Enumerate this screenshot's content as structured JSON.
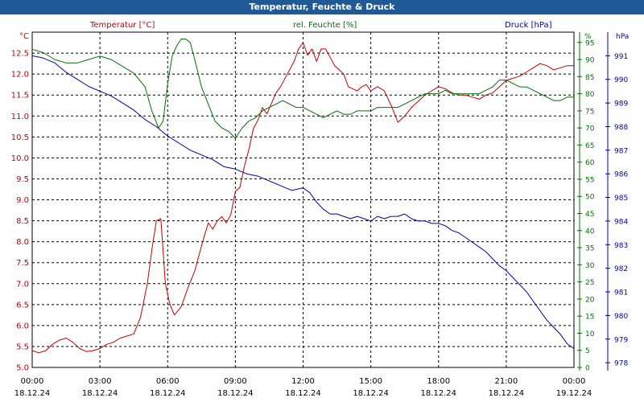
{
  "chart_data": {
    "type": "line",
    "title": "Temperatur, Feuchte & Druck",
    "x_ticks": [
      {
        "time": "00:00",
        "date": "18.12.24"
      },
      {
        "time": "03:00",
        "date": "18.12.24"
      },
      {
        "time": "06:00",
        "date": "18.12.24"
      },
      {
        "time": "09:00",
        "date": "18.12.24"
      },
      {
        "time": "12:00",
        "date": "18.12.24"
      },
      {
        "time": "15:00",
        "date": "18.12.24"
      },
      {
        "time": "18:00",
        "date": "18.12.24"
      },
      {
        "time": "21:00",
        "date": "18.12.24"
      },
      {
        "time": "00:00",
        "date": "19.12.24"
      }
    ],
    "xlim_hours": [
      0,
      24
    ],
    "axes": {
      "temperature": {
        "label": "Temperatur [°C]",
        "unit": "°C",
        "ylim": [
          5.0,
          13.0
        ],
        "ticks": [
          "5.0",
          "5.5",
          "6.0",
          "6.5",
          "7.0",
          "7.5",
          "8.0",
          "8.5",
          "9.0",
          "9.5",
          "10.0",
          "10.5",
          "11.0",
          "11.5",
          "12.0",
          "12.5"
        ],
        "color": "#c00000"
      },
      "humidity": {
        "label": "rel. Feuchte [%]",
        "unit": "%",
        "ylim": [
          0,
          98
        ],
        "ticks": [
          "0",
          "5",
          "10",
          "15",
          "20",
          "25",
          "30",
          "35",
          "40",
          "45",
          "50",
          "55",
          "60",
          "65",
          "70",
          "75",
          "80",
          "85",
          "90",
          "95"
        ],
        "color": "#007000"
      },
      "pressure": {
        "label": "Druck [hPa]",
        "unit": "hPa",
        "ylim": [
          977.8,
          992.0
        ],
        "ticks": [
          "978",
          "979",
          "980",
          "981",
          "982",
          "983",
          "984",
          "985",
          "986",
          "987",
          "988",
          "989",
          "990",
          "991"
        ],
        "color": "#0000a0"
      }
    },
    "series": [
      {
        "name": "Temperatur",
        "axis": "temperature",
        "color": "#c00000",
        "hours": [
          0,
          0.3,
          0.6,
          0.9,
          1.2,
          1.5,
          1.8,
          2.1,
          2.4,
          2.7,
          3.0,
          3.3,
          3.6,
          3.9,
          4.2,
          4.5,
          4.8,
          5.1,
          5.3,
          5.5,
          5.7,
          5.9,
          6.1,
          6.3,
          6.6,
          6.9,
          7.2,
          7.5,
          7.8,
          8.0,
          8.2,
          8.4,
          8.6,
          8.8,
          9.0,
          9.2,
          9.4,
          9.6,
          9.8,
          10.0,
          10.2,
          10.4,
          10.6,
          10.8,
          11.0,
          11.2,
          11.4,
          11.6,
          11.8,
          12.0,
          12.2,
          12.4,
          12.6,
          12.8,
          13.0,
          13.2,
          13.4,
          13.6,
          13.8,
          14.0,
          14.2,
          14.4,
          14.6,
          14.8,
          15.0,
          15.3,
          15.6,
          15.9,
          16.2,
          16.5,
          16.8,
          17.1,
          17.4,
          17.7,
          18.0,
          18.3,
          18.6,
          18.9,
          19.2,
          19.5,
          19.8,
          20.1,
          20.4,
          20.7,
          21.0,
          21.3,
          21.6,
          21.9,
          22.2,
          22.5,
          22.8,
          23.1,
          23.4,
          23.7,
          24.0
        ],
        "values": [
          5.4,
          5.35,
          5.4,
          5.55,
          5.65,
          5.7,
          5.6,
          5.45,
          5.38,
          5.4,
          5.45,
          5.55,
          5.6,
          5.7,
          5.75,
          5.8,
          6.2,
          7.0,
          7.8,
          8.5,
          8.55,
          7.0,
          6.5,
          6.25,
          6.45,
          6.9,
          7.3,
          7.9,
          8.45,
          8.3,
          8.5,
          8.6,
          8.45,
          8.65,
          9.2,
          9.3,
          9.8,
          10.2,
          10.7,
          10.9,
          11.2,
          11.05,
          11.3,
          11.55,
          11.7,
          11.9,
          12.1,
          12.3,
          12.6,
          12.75,
          12.45,
          12.6,
          12.3,
          12.6,
          12.6,
          12.4,
          12.2,
          12.1,
          12.0,
          11.7,
          11.65,
          11.6,
          11.7,
          11.75,
          11.6,
          11.7,
          11.6,
          11.25,
          10.85,
          11.0,
          11.2,
          11.35,
          11.5,
          11.6,
          11.7,
          11.65,
          11.55,
          11.5,
          11.5,
          11.45,
          11.4,
          11.5,
          11.55,
          11.7,
          11.85,
          11.9,
          11.95,
          12.05,
          12.15,
          12.25,
          12.2,
          12.1,
          12.15,
          12.2,
          12.2
        ]
      },
      {
        "name": "rel. Feuchte",
        "axis": "humidity",
        "color": "#007000",
        "hours": [
          0,
          0.5,
          1.0,
          1.5,
          2.0,
          2.5,
          3.0,
          3.5,
          4.0,
          4.5,
          5.0,
          5.3,
          5.6,
          5.8,
          6.0,
          6.2,
          6.4,
          6.6,
          6.8,
          7.0,
          7.2,
          7.5,
          7.8,
          8.1,
          8.4,
          8.7,
          9.0,
          9.3,
          9.6,
          9.9,
          10.2,
          10.5,
          10.8,
          11.1,
          11.4,
          11.7,
          12.0,
          12.3,
          12.6,
          12.9,
          13.2,
          13.5,
          13.8,
          14.1,
          14.4,
          14.7,
          15.0,
          15.3,
          15.6,
          15.9,
          16.2,
          16.5,
          16.8,
          17.1,
          17.4,
          17.7,
          18.0,
          18.3,
          18.6,
          18.9,
          19.2,
          19.5,
          19.8,
          20.1,
          20.4,
          20.7,
          21.0,
          21.3,
          21.6,
          21.9,
          22.2,
          22.5,
          22.8,
          23.1,
          23.4,
          23.7,
          24.0
        ],
        "values": [
          93,
          92,
          90,
          89,
          89,
          90,
          91,
          90,
          88,
          86,
          82,
          75,
          70,
          72,
          83,
          91,
          94,
          96,
          96,
          95,
          90,
          82,
          77,
          72,
          70,
          69,
          67,
          70,
          72,
          73,
          75,
          76,
          77,
          78,
          77,
          76,
          76,
          75,
          74,
          73,
          74,
          75,
          74,
          74,
          75,
          75,
          75,
          76,
          76,
          76,
          76,
          77,
          78,
          79,
          80,
          80,
          80,
          81,
          80,
          80,
          80,
          80,
          80,
          81,
          82,
          84,
          84,
          83,
          82,
          82,
          81,
          80,
          79,
          78,
          78,
          79,
          79
        ]
      },
      {
        "name": "Druck",
        "axis": "pressure",
        "color": "#0000a0",
        "hours": [
          0,
          0.5,
          1.0,
          1.5,
          2.0,
          2.5,
          3.0,
          3.5,
          4.0,
          4.5,
          5.0,
          5.5,
          6.0,
          6.5,
          7.0,
          7.5,
          8.0,
          8.5,
          9.0,
          9.5,
          10.0,
          10.5,
          11.0,
          11.5,
          12.0,
          12.3,
          12.6,
          12.9,
          13.2,
          13.5,
          13.8,
          14.1,
          14.4,
          14.7,
          15.0,
          15.3,
          15.6,
          15.9,
          16.2,
          16.5,
          16.8,
          17.1,
          17.4,
          17.7,
          18.0,
          18.3,
          18.6,
          18.9,
          19.2,
          19.5,
          19.8,
          20.1,
          20.4,
          20.7,
          21.0,
          21.3,
          21.6,
          21.9,
          22.2,
          22.5,
          22.8,
          23.1,
          23.4,
          23.7,
          24.0
        ],
        "values": [
          991.0,
          990.9,
          990.7,
          990.3,
          990.0,
          989.7,
          989.5,
          989.3,
          989.0,
          988.7,
          988.3,
          988.0,
          987.6,
          987.3,
          987.0,
          986.8,
          986.6,
          986.3,
          986.2,
          986.0,
          985.9,
          985.7,
          985.5,
          985.3,
          985.4,
          985.2,
          984.8,
          984.5,
          984.3,
          984.3,
          984.2,
          984.1,
          984.2,
          984.1,
          984.0,
          984.2,
          984.1,
          984.2,
          984.2,
          984.3,
          984.1,
          984.0,
          984.0,
          983.9,
          983.9,
          983.8,
          983.6,
          983.5,
          983.3,
          983.1,
          982.9,
          982.7,
          982.4,
          982.1,
          981.9,
          981.6,
          981.3,
          981.0,
          980.6,
          980.2,
          979.8,
          979.5,
          979.2,
          978.8,
          978.6
        ]
      }
    ]
  }
}
